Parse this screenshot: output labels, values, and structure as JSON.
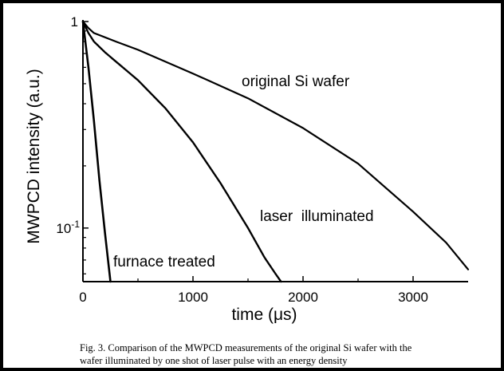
{
  "chart_data": {
    "type": "line",
    "xlabel": "time (μs)",
    "ylabel": "MWPCD intensity (a.u.)",
    "xlim": [
      0,
      3500
    ],
    "ylim": [
      0.055,
      1
    ],
    "yscale": "log",
    "x_ticks": [
      {
        "value": 0,
        "label": "0"
      },
      {
        "value": 1000,
        "label": "1000"
      },
      {
        "value": 2000,
        "label": "2000"
      },
      {
        "value": 3000,
        "label": "3000"
      }
    ],
    "y_ticks": [
      {
        "value": 1,
        "label": "1"
      },
      {
        "value": 0.1,
        "label": "10",
        "sup": "-1"
      }
    ],
    "series": [
      {
        "name": "original Si wafer",
        "x": [
          0,
          50,
          100,
          300,
          500,
          1000,
          1500,
          2000,
          2500,
          3000,
          3300,
          3500
        ],
        "y": [
          1.0,
          0.93,
          0.88,
          0.8,
          0.73,
          0.56,
          0.425,
          0.305,
          0.205,
          0.12,
          0.085,
          0.063
        ]
      },
      {
        "name": "laser  illuminated",
        "x": [
          0,
          50,
          100,
          200,
          300,
          500,
          750,
          1000,
          1250,
          1500,
          1650,
          1750,
          1800
        ],
        "y": [
          1.0,
          0.88,
          0.8,
          0.71,
          0.64,
          0.52,
          0.38,
          0.26,
          0.165,
          0.1,
          0.072,
          0.06,
          0.055
        ]
      },
      {
        "name": "furnace treated",
        "x": [
          0,
          50,
          100,
          150,
          200,
          250
        ],
        "y": [
          1.0,
          0.6,
          0.33,
          0.17,
          0.095,
          0.055
        ]
      }
    ]
  },
  "caption": {
    "line1": "Fig. 3.  Comparison of the MWPCD measurements of the original Si wafer with the",
    "line2": "wafer illuminated by one shot of laser pulse with an energy density"
  }
}
